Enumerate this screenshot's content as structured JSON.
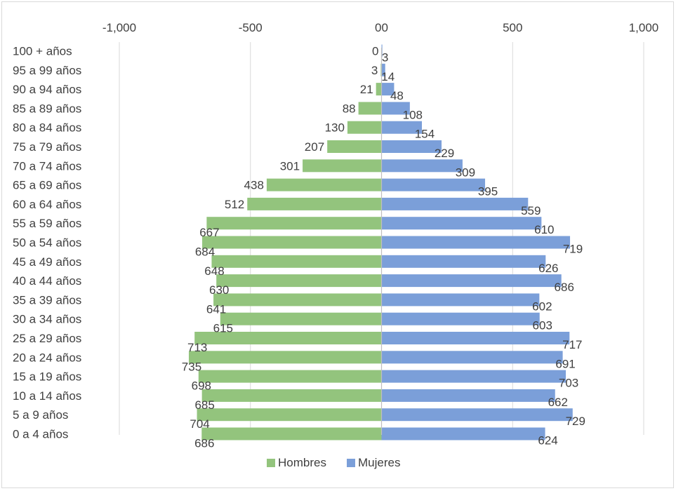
{
  "chart_data": {
    "type": "bar",
    "orientation": "horizontal",
    "xlim": [
      -1000,
      1000
    ],
    "xticks": [
      -1000,
      -500,
      0,
      500,
      1000
    ],
    "xtick_labels": [
      "-1,000",
      "-500",
      "00",
      "500",
      "1,000"
    ],
    "grid": true,
    "legend_position": "bottom",
    "categories": [
      "100 + años",
      "95 a 99 años",
      "90 a 94 años",
      "85 a 89 años",
      "80 a 84 años",
      "75 a 79 años",
      "70 a 74 años",
      "65 a 69 años",
      "60 a 64 años",
      "55 a 59 años",
      "50 a 54 años",
      "45 a 49 años",
      "40 a 44 años",
      "35 a 39 años",
      "30 a 34 años",
      "25 a 29 años",
      "20 a 24 años",
      "15 a 19 años",
      "10 a 14 años",
      "5 a 9 años",
      "0 a 4 años"
    ],
    "series": [
      {
        "name": "Hombres",
        "color": "#93c47d",
        "values": [
          0,
          3,
          21,
          88,
          130,
          207,
          301,
          438,
          512,
          667,
          684,
          648,
          630,
          641,
          615,
          713,
          735,
          698,
          685,
          704,
          686
        ]
      },
      {
        "name": "Mujeres",
        "color": "#7b9fd9",
        "values": [
          3,
          14,
          48,
          108,
          154,
          229,
          309,
          395,
          559,
          610,
          719,
          626,
          686,
          602,
          603,
          717,
          691,
          703,
          662,
          729,
          624
        ]
      }
    ]
  }
}
